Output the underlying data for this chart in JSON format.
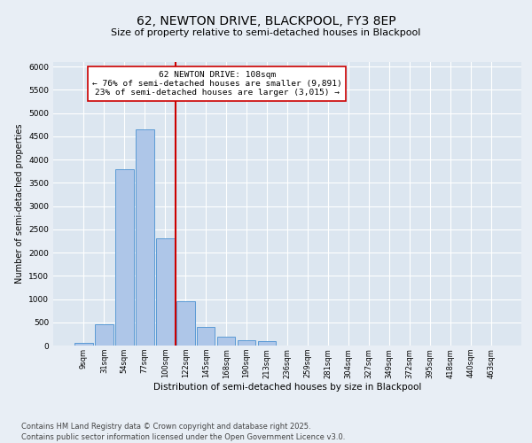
{
  "title1": "62, NEWTON DRIVE, BLACKPOOL, FY3 8EP",
  "title2": "Size of property relative to semi-detached houses in Blackpool",
  "xlabel": "Distribution of semi-detached houses by size in Blackpool",
  "ylabel": "Number of semi-detached properties",
  "categories": [
    "9sqm",
    "31sqm",
    "54sqm",
    "77sqm",
    "100sqm",
    "122sqm",
    "145sqm",
    "168sqm",
    "190sqm",
    "213sqm",
    "236sqm",
    "259sqm",
    "281sqm",
    "304sqm",
    "327sqm",
    "349sqm",
    "372sqm",
    "395sqm",
    "418sqm",
    "440sqm",
    "463sqm"
  ],
  "values": [
    50,
    450,
    3800,
    4650,
    2300,
    950,
    400,
    200,
    110,
    100,
    0,
    0,
    0,
    0,
    0,
    0,
    0,
    0,
    0,
    0,
    0
  ],
  "bar_color": "#aec6e8",
  "bar_edge_color": "#5b9bd5",
  "vline_x": 4.5,
  "vline_color": "#cc0000",
  "annotation_text": "62 NEWTON DRIVE: 108sqm\n← 76% of semi-detached houses are smaller (9,891)\n23% of semi-detached houses are larger (3,015) →",
  "annotation_box_color": "#ffffff",
  "annotation_box_edge": "#cc0000",
  "ylim": [
    0,
    6100
  ],
  "yticks": [
    0,
    500,
    1000,
    1500,
    2000,
    2500,
    3000,
    3500,
    4000,
    4500,
    5000,
    5500,
    6000
  ],
  "bg_color": "#e8eef5",
  "plot_bg_color": "#dce6f0",
  "footer": "Contains HM Land Registry data © Crown copyright and database right 2025.\nContains public sector information licensed under the Open Government Licence v3.0.",
  "title1_fontsize": 10,
  "title2_fontsize": 8,
  "annotation_fontsize": 6.8,
  "footer_fontsize": 6,
  "ylabel_fontsize": 7,
  "xlabel_fontsize": 7.5
}
